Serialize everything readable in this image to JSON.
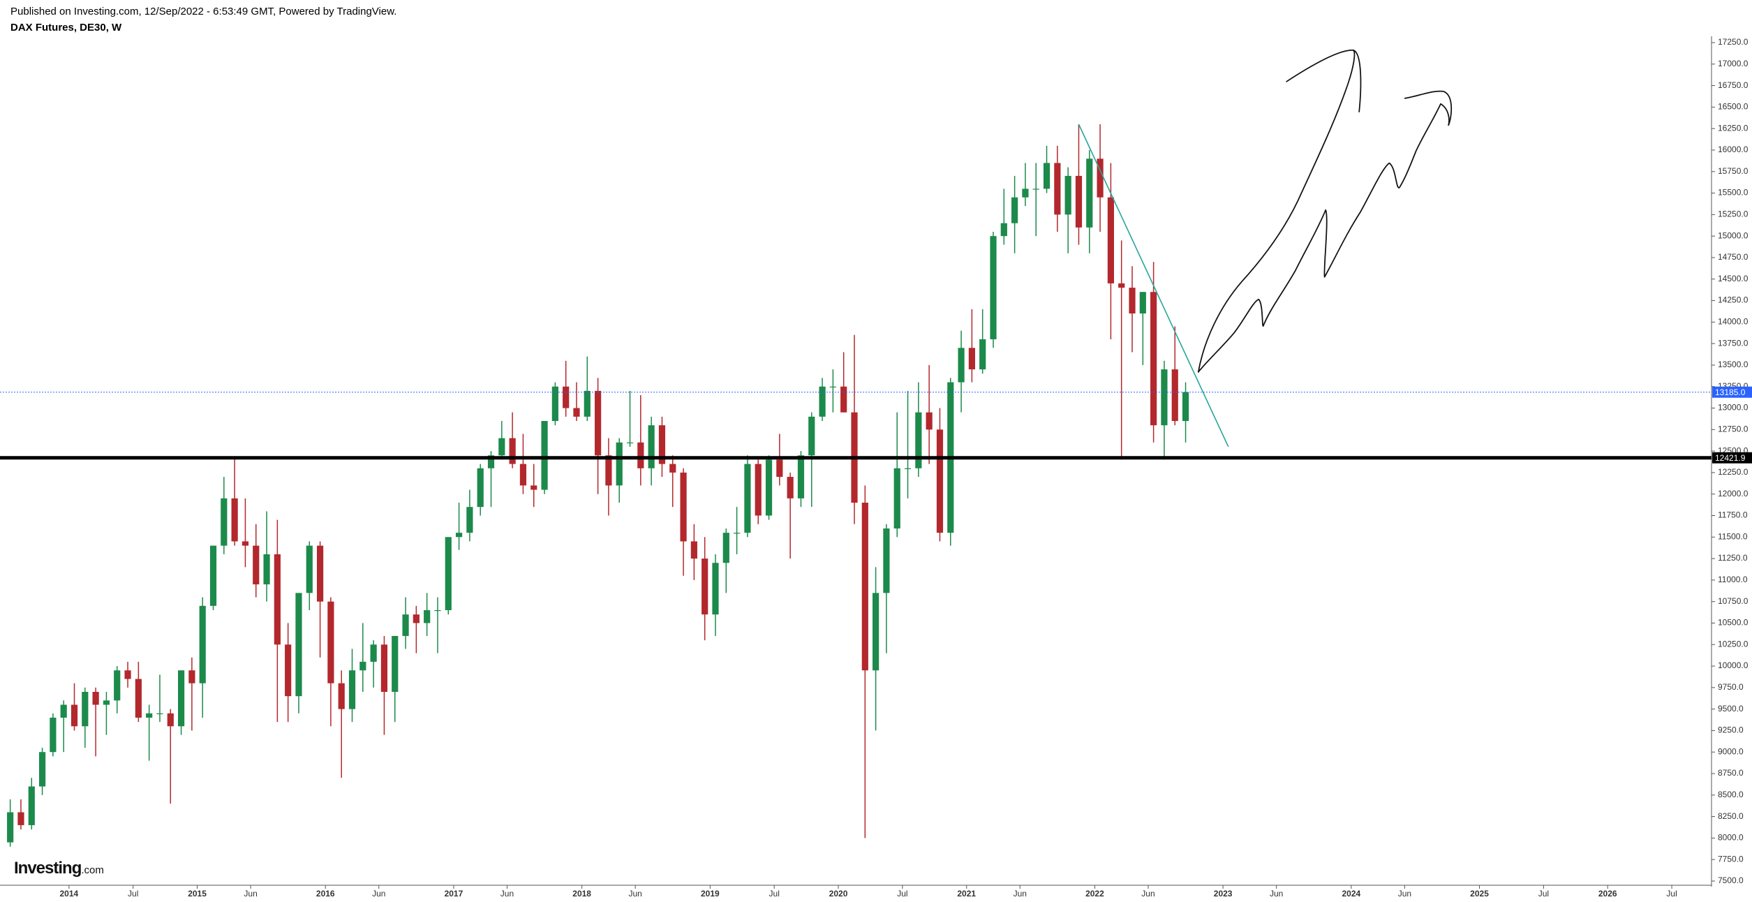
{
  "chart_data": {
    "type": "candlestick",
    "subtitle": "Published on Investing.com, 12/Sep/2022 - 6:53:49 GMT, Powered by TradingView.",
    "title": "DAX Futures, DE30, W",
    "logo": "Investing",
    "logo_suffix": ".com",
    "up_color": "#1c8a4b",
    "down_color": "#b3282d",
    "x": [
      "2013-07",
      "2013-08",
      "2013-09",
      "2013-10",
      "2013-11",
      "2013-12",
      "2014-01",
      "2014-02",
      "2014-03",
      "2014-04",
      "2014-05",
      "2014-06",
      "2014-07",
      "2014-08",
      "2014-09",
      "2014-10",
      "2014-11",
      "2014-12",
      "2015-01",
      "2015-02",
      "2015-03",
      "2015-04",
      "2015-05",
      "2015-06",
      "2015-07",
      "2015-08",
      "2015-09",
      "2015-10",
      "2015-11",
      "2015-12",
      "2016-01",
      "2016-02",
      "2016-03",
      "2016-04",
      "2016-05",
      "2016-06",
      "2016-07",
      "2016-08",
      "2016-09",
      "2016-10",
      "2016-11",
      "2016-12",
      "2017-01",
      "2017-02",
      "2017-03",
      "2017-04",
      "2017-05",
      "2017-06",
      "2017-07",
      "2017-08",
      "2017-09",
      "2017-10",
      "2017-11",
      "2017-12",
      "2018-01",
      "2018-02",
      "2018-03",
      "2018-04",
      "2018-05",
      "2018-06",
      "2018-07",
      "2018-08",
      "2018-09",
      "2018-10",
      "2018-11",
      "2018-12",
      "2019-01",
      "2019-02",
      "2019-03",
      "2019-04",
      "2019-05",
      "2019-06",
      "2019-07",
      "2019-08",
      "2019-09",
      "2019-10",
      "2019-11",
      "2019-12",
      "2020-01",
      "2020-02",
      "2020-03",
      "2020-04",
      "2020-05",
      "2020-06",
      "2020-07",
      "2020-08",
      "2020-09",
      "2020-10",
      "2020-11",
      "2020-12",
      "2021-01",
      "2021-02",
      "2021-03",
      "2021-04",
      "2021-05",
      "2021-06",
      "2021-07",
      "2021-08",
      "2021-09",
      "2021-10",
      "2021-11",
      "2021-12",
      "2022-01",
      "2022-02",
      "2022-03",
      "2022-04",
      "2022-05",
      "2022-06",
      "2022-07",
      "2022-08",
      "2022-09"
    ],
    "open": [
      7950,
      8300,
      8150,
      8600,
      9000,
      9400,
      9550,
      9300,
      9700,
      9550,
      9600,
      9950,
      9850,
      9400,
      9450,
      9450,
      9300,
      9950,
      9800,
      10700,
      11400,
      11950,
      11450,
      11400,
      10950,
      11300,
      10250,
      9650,
      10850,
      11400,
      10750,
      9800,
      9500,
      9950,
      10050,
      10250,
      9700,
      10350,
      10600,
      10500,
      10650,
      10650,
      11500,
      11550,
      11850,
      12300,
      12450,
      12650,
      12350,
      12100,
      12050,
      12850,
      13250,
      13000,
      12900,
      13200,
      12450,
      12100,
      12600,
      12600,
      12300,
      12800,
      12350,
      12250,
      11450,
      11250,
      10600,
      11200,
      11550,
      11550,
      12350,
      11750,
      12400,
      12200,
      11950,
      12450,
      12900,
      13250,
      13250,
      12950,
      11900,
      9950,
      10850,
      11600,
      12300,
      12300,
      12950,
      12750,
      11550,
      13300,
      13700,
      13450,
      13800,
      15000,
      15150,
      15450,
      15550,
      15550,
      15850,
      15250,
      15700,
      15100,
      15900,
      15450,
      14450,
      14400,
      14100,
      14350,
      12800,
      13450,
      12850
    ],
    "high": [
      8450,
      8450,
      8700,
      9050,
      9450,
      9600,
      9800,
      9750,
      9750,
      9700,
      10000,
      10050,
      10050,
      9550,
      9900,
      9500,
      9950,
      10100,
      10800,
      11400,
      12200,
      12420,
      11950,
      11650,
      11800,
      11700,
      10500,
      10850,
      11450,
      11450,
      10800,
      9950,
      10200,
      10500,
      10300,
      10350,
      10350,
      10800,
      10700,
      10850,
      10800,
      11500,
      11900,
      12050,
      12350,
      12500,
      12850,
      12950,
      12700,
      12350,
      12850,
      13300,
      13550,
      13300,
      13600,
      13350,
      12650,
      12650,
      13200,
      13150,
      12900,
      12900,
      12450,
      12300,
      11650,
      11500,
      11300,
      11600,
      11850,
      12450,
      12400,
      12450,
      12700,
      12250,
      12500,
      12950,
      13350,
      13450,
      13650,
      13850,
      12100,
      11150,
      11650,
      12950,
      13200,
      13300,
      13500,
      13000,
      13350,
      13900,
      14150,
      14150,
      15050,
      15550,
      15700,
      15850,
      15850,
      16050,
      16050,
      15800,
      16300,
      16000,
      16300,
      15850,
      14950,
      14650,
      14350,
      14700,
      13550,
      13950,
      13300
    ],
    "low": [
      7900,
      8100,
      8100,
      8500,
      8950,
      9000,
      9250,
      9050,
      8950,
      9200,
      9450,
      9750,
      9350,
      8900,
      9350,
      8400,
      9200,
      9250,
      9400,
      10650,
      11300,
      11400,
      11150,
      10800,
      10750,
      9350,
      9350,
      9450,
      10650,
      10100,
      9300,
      8700,
      9350,
      9700,
      9750,
      9200,
      9350,
      10200,
      10150,
      10350,
      10150,
      10600,
      11350,
      11450,
      11750,
      11850,
      12400,
      12300,
      12000,
      11850,
      12000,
      12800,
      12900,
      12850,
      12850,
      12000,
      11750,
      11900,
      12550,
      12100,
      12100,
      12200,
      11850,
      11050,
      11000,
      10300,
      10350,
      10850,
      11300,
      11500,
      11650,
      11700,
      12100,
      11250,
      11850,
      11850,
      12850,
      12950,
      12950,
      11650,
      8000,
      9250,
      10150,
      11500,
      11950,
      12200,
      12350,
      11450,
      11400,
      12950,
      13300,
      13400,
      13700,
      14900,
      14800,
      15350,
      15000,
      15500,
      15050,
      14800,
      14900,
      14800,
      15050,
      13800,
      12400,
      13650,
      13500,
      12600,
      12400,
      12800,
      12600
    ],
    "close": [
      8300,
      8150,
      8600,
      9000,
      9400,
      9550,
      9300,
      9700,
      9550,
      9600,
      9950,
      9850,
      9400,
      9450,
      9450,
      9300,
      9950,
      9800,
      10700,
      11400,
      11950,
      11450,
      11400,
      10950,
      11300,
      10250,
      9650,
      10850,
      11400,
      10750,
      9800,
      9500,
      9950,
      10050,
      10250,
      9700,
      10350,
      10600,
      10500,
      10650,
      10650,
      11500,
      11550,
      11850,
      12300,
      12450,
      12650,
      12350,
      12100,
      12050,
      12850,
      13250,
      13000,
      12900,
      13200,
      12450,
      12100,
      12600,
      12600,
      12300,
      12800,
      12350,
      12250,
      11450,
      11250,
      10600,
      11200,
      11550,
      11550,
      12350,
      11750,
      12400,
      12200,
      11950,
      12450,
      12900,
      13250,
      13250,
      12950,
      11900,
      9950,
      10850,
      11600,
      12300,
      12300,
      12950,
      12750,
      11550,
      13300,
      13700,
      13450,
      13800,
      15000,
      15150,
      15450,
      15550,
      15550,
      15850,
      15250,
      15700,
      15100,
      15900,
      15450,
      14450,
      14400,
      14100,
      14350,
      12800,
      13450,
      12850,
      13185
    ],
    "xlim": [
      "2013-07",
      "2026-10"
    ],
    "xticks": [
      {
        "value": "2014-01",
        "label": "2014"
      },
      {
        "value": "2014-07",
        "label": "Jul"
      },
      {
        "value": "2015-01",
        "label": "2015"
      },
      {
        "value": "2015-06",
        "label": "Jun"
      },
      {
        "value": "2016-01",
        "label": "2016"
      },
      {
        "value": "2016-06",
        "label": "Jun"
      },
      {
        "value": "2017-01",
        "label": "2017"
      },
      {
        "value": "2017-06",
        "label": "Jun"
      },
      {
        "value": "2018-01",
        "label": "2018"
      },
      {
        "value": "2018-06",
        "label": "Jun"
      },
      {
        "value": "2019-01",
        "label": "2019"
      },
      {
        "value": "2019-07",
        "label": "Jul"
      },
      {
        "value": "2020-01",
        "label": "2020"
      },
      {
        "value": "2020-07",
        "label": "Jul"
      },
      {
        "value": "2021-01",
        "label": "2021"
      },
      {
        "value": "2021-06",
        "label": "Jun"
      },
      {
        "value": "2022-01",
        "label": "2022"
      },
      {
        "value": "2022-06",
        "label": "Jun"
      },
      {
        "value": "2023-01",
        "label": "2023"
      },
      {
        "value": "2023-06",
        "label": "Jun"
      },
      {
        "value": "2024-01",
        "label": "2024"
      },
      {
        "value": "2024-06",
        "label": "Jun"
      },
      {
        "value": "2025-01",
        "label": "2025"
      },
      {
        "value": "2025-07",
        "label": "Jul"
      },
      {
        "value": "2026-01",
        "label": "2026"
      },
      {
        "value": "2026-07",
        "label": "Jul"
      }
    ],
    "ylim": [
      7500,
      17250
    ],
    "yticks": [
      {
        "value": 7500,
        "label": "7500.0"
      },
      {
        "value": 7750,
        "label": "7750.0"
      },
      {
        "value": 8000,
        "label": "8000.0"
      },
      {
        "value": 8250,
        "label": "8250.0"
      },
      {
        "value": 8500,
        "label": "8500.0"
      },
      {
        "value": 8750,
        "label": "8750.0"
      },
      {
        "value": 9000,
        "label": "9000.0"
      },
      {
        "value": 9250,
        "label": "9250.0"
      },
      {
        "value": 9500,
        "label": "9500.0"
      },
      {
        "value": 9750,
        "label": "9750.0"
      },
      {
        "value": 10000,
        "label": "10000.0"
      },
      {
        "value": 10250,
        "label": "10250.0"
      },
      {
        "value": 10500,
        "label": "10500.0"
      },
      {
        "value": 10750,
        "label": "10750.0"
      },
      {
        "value": 11000,
        "label": "11000.0"
      },
      {
        "value": 11250,
        "label": "11250.0"
      },
      {
        "value": 11500,
        "label": "11500.0"
      },
      {
        "value": 11750,
        "label": "11750.0"
      },
      {
        "value": 12000,
        "label": "12000.0"
      },
      {
        "value": 12250,
        "label": "12250.0"
      },
      {
        "value": 12500,
        "label": "12500.0"
      },
      {
        "value": 12750,
        "label": "12750.0"
      },
      {
        "value": 13000,
        "label": "13000.0"
      },
      {
        "value": 13250,
        "label": "13250.0"
      },
      {
        "value": 13500,
        "label": "13500.0"
      },
      {
        "value": 13750,
        "label": "13750.0"
      },
      {
        "value": 14000,
        "label": "14000.0"
      },
      {
        "value": 14250,
        "label": "14250.0"
      },
      {
        "value": 14500,
        "label": "14500.0"
      },
      {
        "value": 14750,
        "label": "14750.0"
      },
      {
        "value": 15000,
        "label": "15000.0"
      },
      {
        "value": 15250,
        "label": "15250.0"
      },
      {
        "value": 15500,
        "label": "15500.0"
      },
      {
        "value": 15750,
        "label": "15750.0"
      },
      {
        "value": 16000,
        "label": "16000.0"
      },
      {
        "value": 16250,
        "label": "16250.0"
      },
      {
        "value": 16500,
        "label": "16500.0"
      },
      {
        "value": 16750,
        "label": "16750.0"
      },
      {
        "value": 17000,
        "label": "17000.0"
      },
      {
        "value": 17250,
        "label": "17250.0"
      }
    ],
    "hline": {
      "value": 12421.9,
      "label": "12421.9",
      "color": "#000000"
    },
    "last_price": {
      "value": 13185,
      "label": "13185.0",
      "color": "#2962ff"
    },
    "trendline": {
      "x": [
        "2021-11",
        "2023-01"
      ],
      "y": [
        16300,
        12550
      ],
      "color": "#26a69a"
    }
  }
}
